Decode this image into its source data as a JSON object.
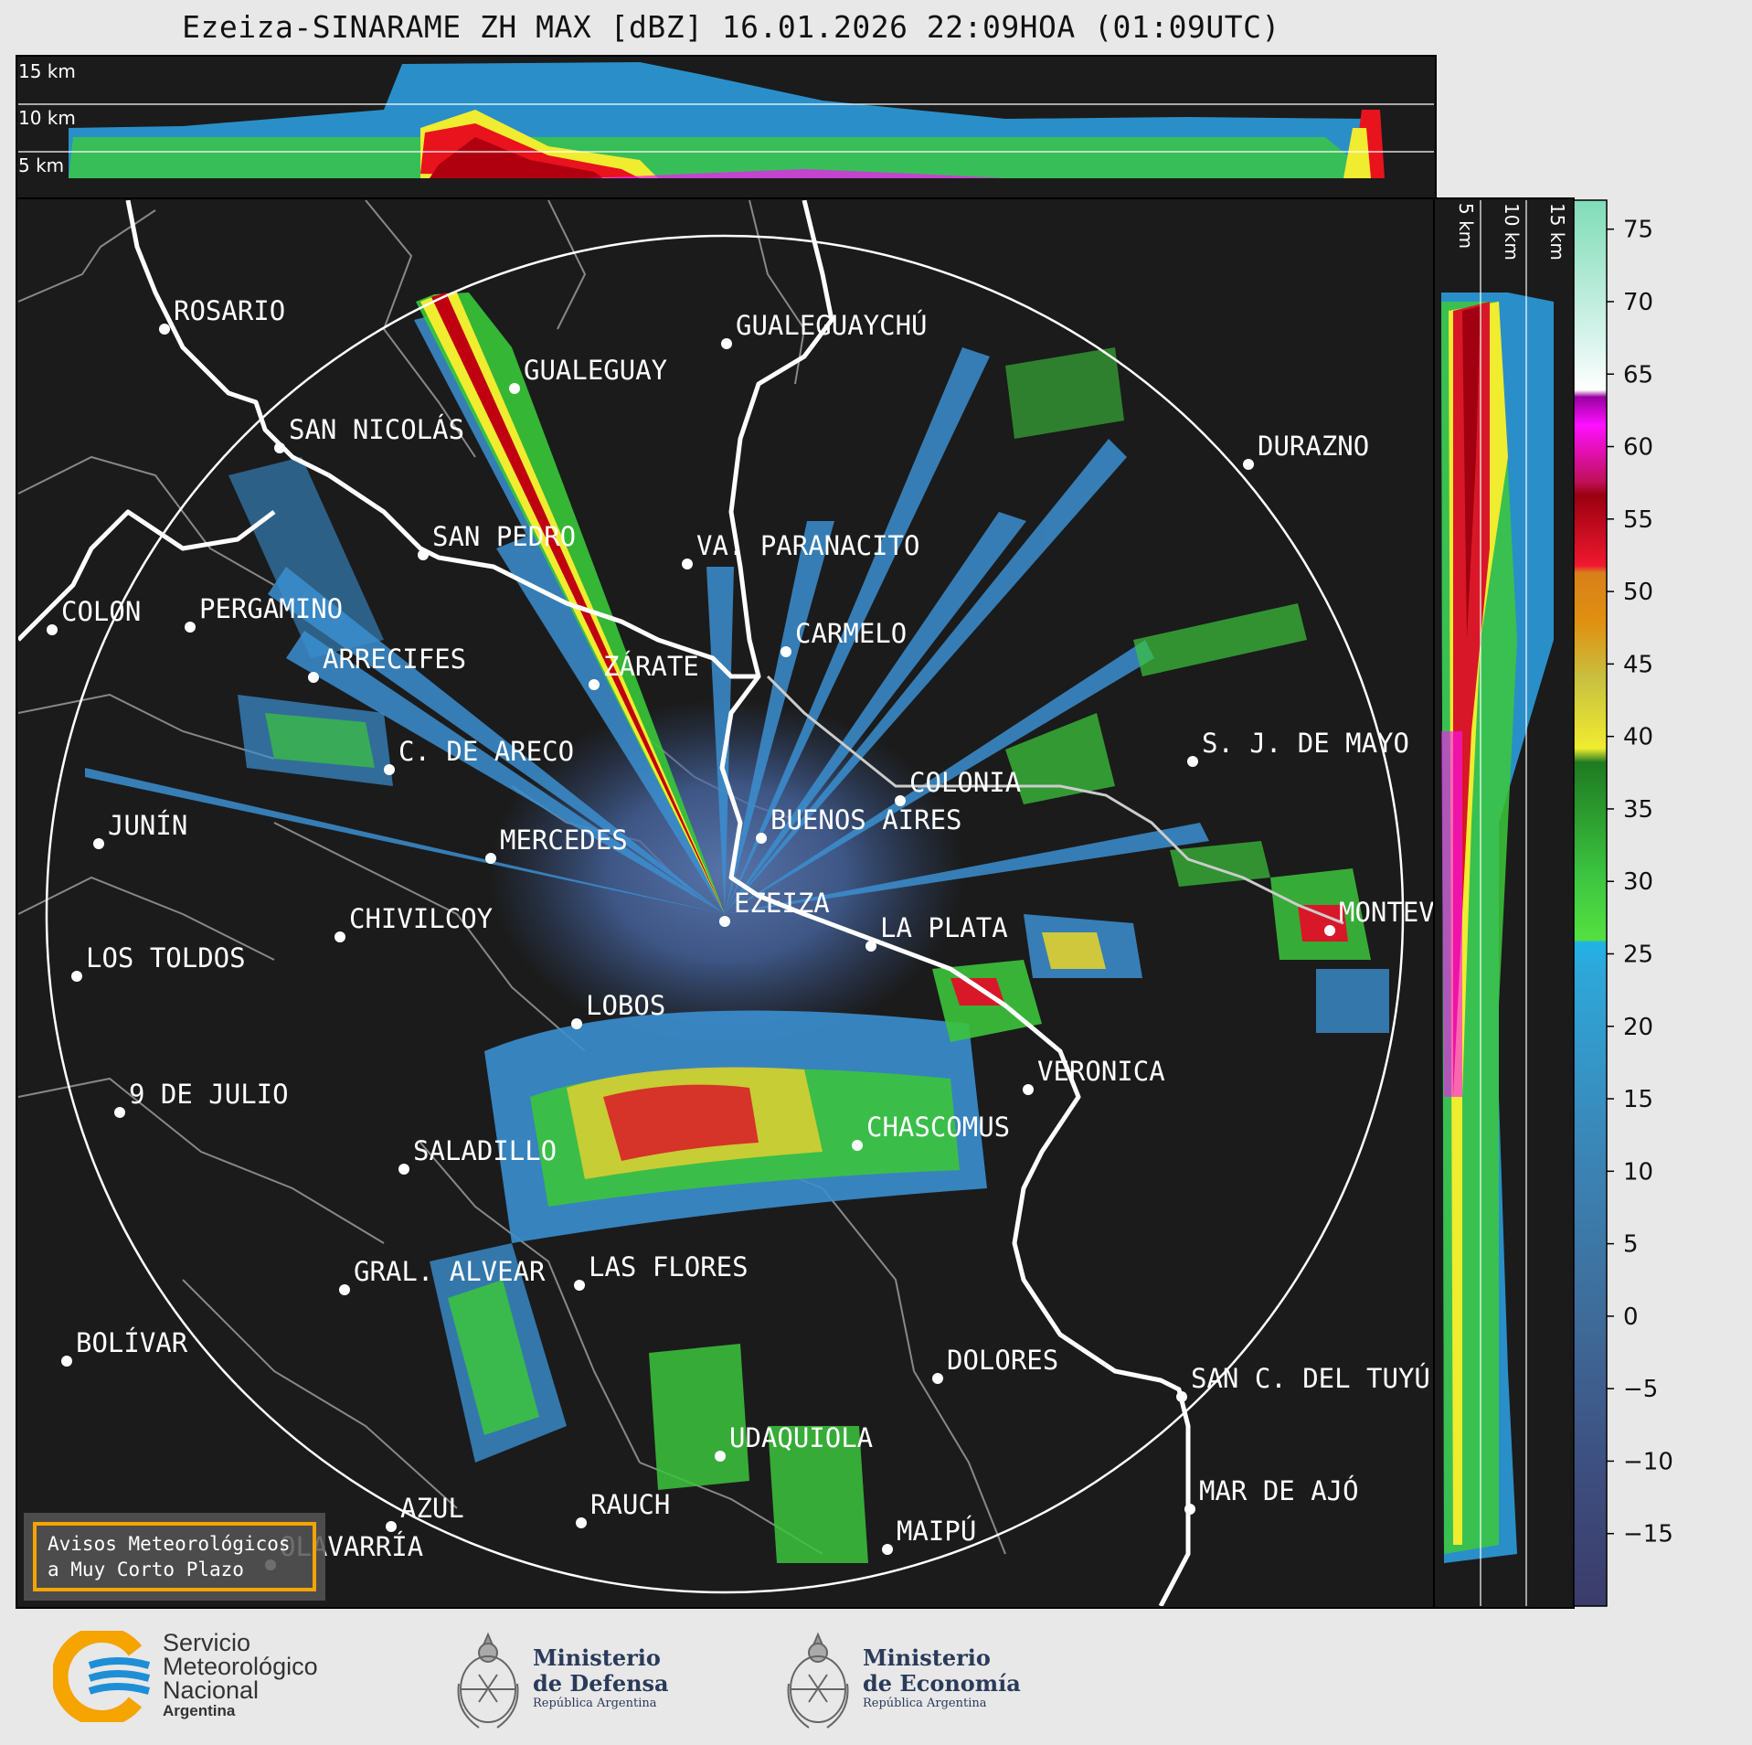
{
  "title": "Ezeiza-SINARAME ZH MAX [dBZ] 16.01.2026 22:09HOA (01:09UTC)",
  "top_panel": {
    "labels": [
      "15 km",
      "10 km",
      "5 km"
    ]
  },
  "side_panel": {
    "labels": [
      "5 km",
      "10 km",
      "15 km"
    ]
  },
  "colorbar": {
    "ticks": [
      "75",
      "70",
      "65",
      "60",
      "55",
      "50",
      "45",
      "40",
      "35",
      "30",
      "25",
      "20",
      "15",
      "10",
      "5",
      "0",
      "−5",
      "−10",
      "−15"
    ],
    "range": [
      -20,
      77
    ]
  },
  "cities": [
    {
      "name": "ROSARIO"
    },
    {
      "name": "GUALEGUAYCHÚ"
    },
    {
      "name": "GUALEGUAY"
    },
    {
      "name": "SAN NICOLÁS"
    },
    {
      "name": "DURAZNO"
    },
    {
      "name": "SAN PEDRO"
    },
    {
      "name": "VA. PARANACITO"
    },
    {
      "name": "COLON"
    },
    {
      "name": "PERGAMINO"
    },
    {
      "name": "CARMELO"
    },
    {
      "name": "ARRECIFES"
    },
    {
      "name": "ZÁRATE"
    },
    {
      "name": "S. J. DE MAYO"
    },
    {
      "name": "C. DE ARECO"
    },
    {
      "name": "COLONIA"
    },
    {
      "name": "JUNÍN"
    },
    {
      "name": "MERCEDES"
    },
    {
      "name": "BUENOS AIRES"
    },
    {
      "name": "MONTEV"
    },
    {
      "name": "EZEIZA"
    },
    {
      "name": "CHIVILCOY"
    },
    {
      "name": "LA PLATA"
    },
    {
      "name": "LOS TOLDOS"
    },
    {
      "name": "LOBOS"
    },
    {
      "name": "VERONICA"
    },
    {
      "name": "9 DE JULIO"
    },
    {
      "name": "CHASCOMUS"
    },
    {
      "name": "SALADILLO"
    },
    {
      "name": "GRAL. ALVEAR"
    },
    {
      "name": "LAS FLORES"
    },
    {
      "name": "BOLÍVAR"
    },
    {
      "name": "DOLORES"
    },
    {
      "name": "SAN C. DEL TUYÚ"
    },
    {
      "name": "UDAQUIOLA"
    },
    {
      "name": "AZUL"
    },
    {
      "name": "RAUCH"
    },
    {
      "name": "MAR DE AJÓ"
    },
    {
      "name": "OLAVARRÍA"
    },
    {
      "name": "MAIPÚ"
    }
  ],
  "avisos": {
    "line1": "Avisos Meteorológicos",
    "line2": "a Muy Corto Plazo"
  },
  "footer": {
    "smn": {
      "l1": "Servicio",
      "l2": "Meteorológico",
      "l3": "Nacional",
      "l4": "Argentina"
    },
    "defensa": {
      "l1": "Ministerio",
      "l2": "de Defensa",
      "l3": "República Argentina"
    },
    "economia": {
      "l1": "Ministerio",
      "l2": "de Economía",
      "l3": "República Argentina"
    }
  },
  "colors": {
    "map_bg": "#1b1b1b",
    "page_bg": "#e8e8e8",
    "accent_orange": "#f5a400",
    "smn_blue": "#1e8fd6"
  }
}
